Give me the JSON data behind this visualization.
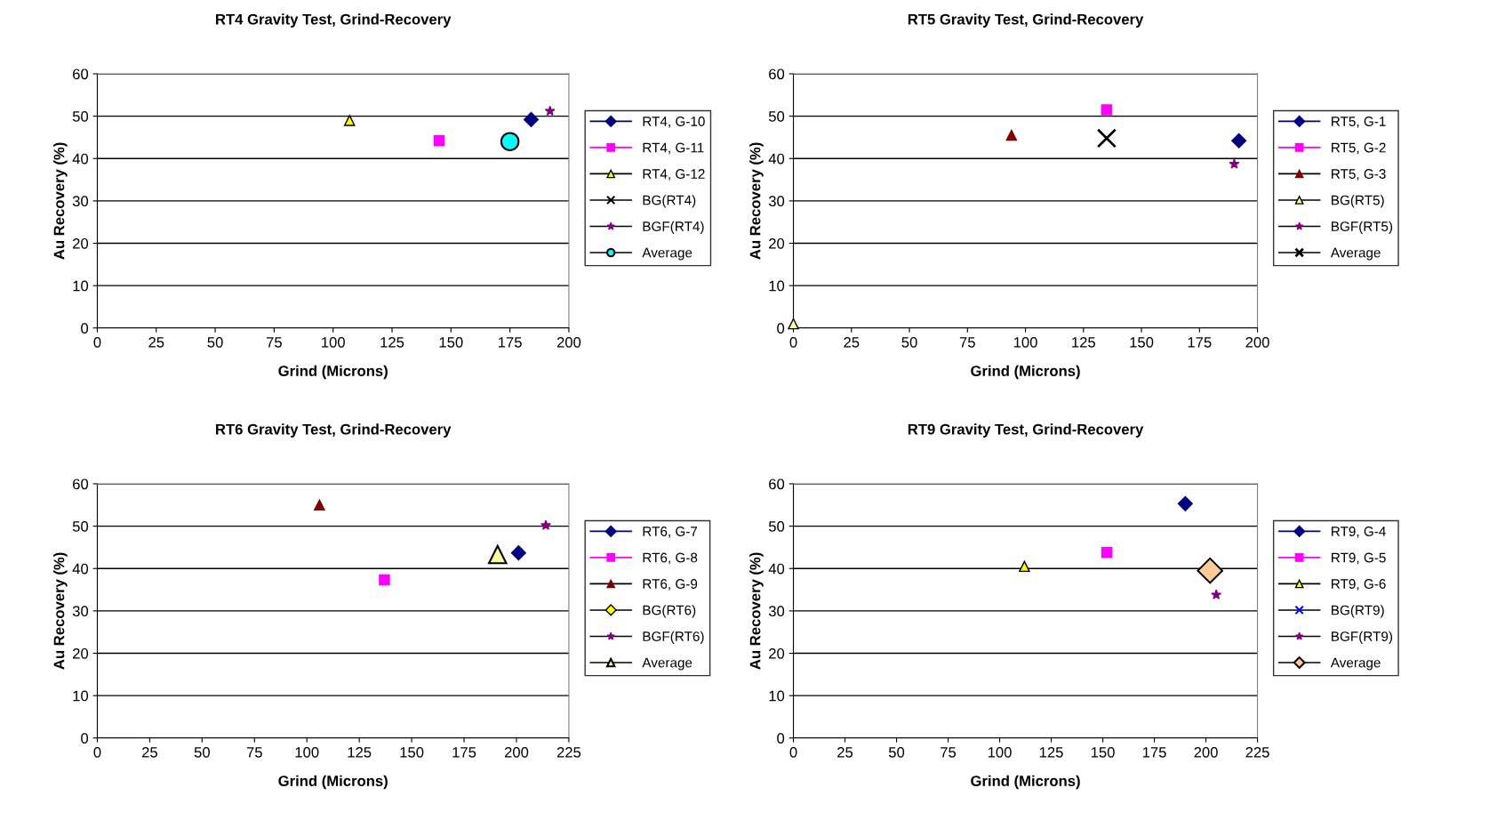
{
  "chart_data": [
    {
      "type": "scatter",
      "title": "RT4 Gravity Test, Grind-Recovery",
      "xlabel": "Grind (Microns)",
      "ylabel": "Au Recovery (%)",
      "xlim": [
        0,
        200
      ],
      "xticks": [
        0,
        25,
        50,
        75,
        100,
        125,
        150,
        175,
        200
      ],
      "ylim": [
        0,
        60
      ],
      "yticks": [
        0,
        10,
        20,
        30,
        40,
        50,
        60
      ],
      "grid": "y",
      "legend": "right",
      "series": [
        {
          "name": "RT4, G-10",
          "color": "#000080",
          "marker": "diamond",
          "x": [
            184
          ],
          "values": [
            49.2
          ]
        },
        {
          "name": "RT4, G-11",
          "color": "#ff00ff",
          "marker": "square",
          "x": [
            145
          ],
          "values": [
            44.2
          ]
        },
        {
          "name": "RT4, G-12",
          "color": "#ffff00",
          "marker": "triangle",
          "x": [
            107
          ],
          "values": [
            49
          ]
        },
        {
          "name": "BG(RT4)",
          "color": "#000000",
          "marker": "cross"
        },
        {
          "name": "BGF(RT4)",
          "color": "#800080",
          "marker": "star",
          "x": [
            192
          ],
          "values": [
            51.2
          ]
        },
        {
          "name": "Average",
          "color": "#00ffff",
          "marker": "circle",
          "x": [
            175
          ],
          "values": [
            44
          ]
        }
      ]
    },
    {
      "type": "scatter",
      "title": "RT5 Gravity Test, Grind-Recovery",
      "xlabel": "Grind (Microns)",
      "ylabel": "Au Recovery (%)",
      "xlim": [
        0,
        200
      ],
      "xticks": [
        0,
        25,
        50,
        75,
        100,
        125,
        150,
        175,
        200
      ],
      "ylim": [
        0,
        60
      ],
      "yticks": [
        0,
        10,
        20,
        30,
        40,
        50,
        60
      ],
      "grid": "y",
      "legend": "right",
      "series": [
        {
          "name": "RT5, G-1",
          "color": "#000080",
          "marker": "diamond",
          "x": [
            192
          ],
          "values": [
            44.2
          ]
        },
        {
          "name": "RT5, G-2",
          "color": "#ff00ff",
          "marker": "square",
          "x": [
            135
          ],
          "values": [
            51.5
          ]
        },
        {
          "name": "RT5, G-3",
          "color": "#800000",
          "marker": "triangle",
          "x": [
            94
          ],
          "values": [
            45.5
          ]
        },
        {
          "name": "BG(RT5)",
          "color": "#ffff99",
          "marker": "triangle",
          "x": [
            0
          ],
          "values": [
            1
          ]
        },
        {
          "name": "BGF(RT5)",
          "color": "#800080",
          "marker": "star",
          "x": [
            190
          ],
          "values": [
            38.7
          ]
        },
        {
          "name": "Average",
          "color": "#000000",
          "marker": "cross",
          "x": [
            135
          ],
          "values": [
            44.8
          ]
        }
      ]
    },
    {
      "type": "scatter",
      "title": "RT6 Gravity Test, Grind-Recovery",
      "xlabel": "Grind (Microns)",
      "ylabel": "Au Recovery (%)",
      "xlim": [
        0,
        225
      ],
      "xticks": [
        0,
        25,
        50,
        75,
        100,
        125,
        150,
        175,
        200,
        225
      ],
      "ylim": [
        0,
        60
      ],
      "yticks": [
        0,
        10,
        20,
        30,
        40,
        50,
        60
      ],
      "grid": "y",
      "legend": "right",
      "series": [
        {
          "name": "RT6, G-7",
          "color": "#000080",
          "marker": "diamond",
          "x": [
            201
          ],
          "values": [
            43.7
          ]
        },
        {
          "name": "RT6, G-8",
          "color": "#ff00ff",
          "marker": "square",
          "x": [
            137
          ],
          "values": [
            37.3
          ]
        },
        {
          "name": "RT6, G-9",
          "color": "#800000",
          "marker": "triangle",
          "x": [
            106
          ],
          "values": [
            55
          ]
        },
        {
          "name": "BG(RT6)",
          "color": "#ffff00",
          "marker": "diamond"
        },
        {
          "name": "BGF(RT6)",
          "color": "#800080",
          "marker": "star",
          "x": [
            214
          ],
          "values": [
            50.2
          ]
        },
        {
          "name": "Average",
          "color": "#ffff99",
          "marker": "triangle",
          "x": [
            191
          ],
          "values": [
            43.3
          ]
        }
      ]
    },
    {
      "type": "scatter",
      "title": "RT9 Gravity Test, Grind-Recovery",
      "xlabel": "Grind (Microns)",
      "ylabel": "Au Recovery (%)",
      "xlim": [
        0,
        225
      ],
      "xticks": [
        0,
        25,
        50,
        75,
        100,
        125,
        150,
        175,
        200,
        225
      ],
      "ylim": [
        0,
        60
      ],
      "yticks": [
        0,
        10,
        20,
        30,
        40,
        50,
        60
      ],
      "grid": "y",
      "legend": "right",
      "series": [
        {
          "name": "RT9, G-4",
          "color": "#000080",
          "marker": "diamond",
          "x": [
            190
          ],
          "values": [
            55.3
          ]
        },
        {
          "name": "RT9, G-5",
          "color": "#ff00ff",
          "marker": "square",
          "x": [
            152
          ],
          "values": [
            43.8
          ]
        },
        {
          "name": "RT9, G-6",
          "color": "#ffff00",
          "marker": "triangle",
          "x": [
            112
          ],
          "values": [
            40.5
          ]
        },
        {
          "name": "BG(RT9)",
          "color": "#0000ff",
          "marker": "cross"
        },
        {
          "name": "BGF(RT9)",
          "color": "#800080",
          "marker": "star",
          "x": [
            205
          ],
          "values": [
            33.8
          ]
        },
        {
          "name": "Average",
          "color": "#ffcc99",
          "marker": "diamond",
          "x": [
            202
          ],
          "values": [
            39.5
          ]
        }
      ]
    }
  ]
}
